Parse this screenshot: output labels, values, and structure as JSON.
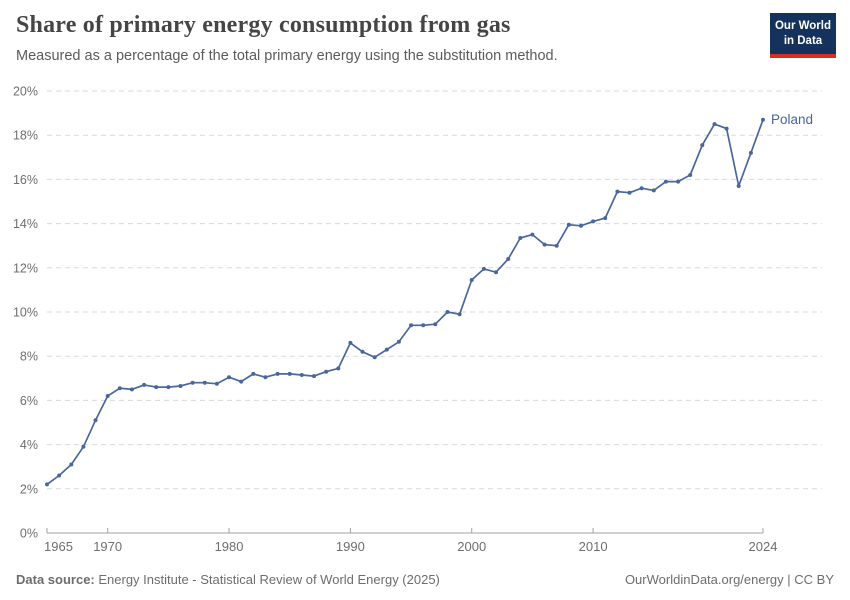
{
  "header": {
    "title": "Share of primary energy consumption from gas",
    "subtitle": "Measured as a percentage of the total primary energy using the substitution method."
  },
  "logo": {
    "line1": "Our World",
    "line2": "in Data",
    "bg_color": "#14325c",
    "accent_color": "#d7301f"
  },
  "chart_data": {
    "type": "line",
    "title": "Share of primary energy consumption from gas",
    "xlabel": "",
    "ylabel": "",
    "ylim": [
      0,
      20
    ],
    "xlim": [
      1965,
      2024
    ],
    "grid": "horizontal-dashed",
    "legend_position": "end-of-line-label",
    "yticks": [
      0,
      2,
      4,
      6,
      8,
      10,
      12,
      14,
      16,
      18,
      20
    ],
    "ytick_suffix": "%",
    "xticks": [
      1965,
      1970,
      1980,
      1990,
      2000,
      2010,
      2024
    ],
    "series": [
      {
        "name": "Poland",
        "color": "#4a679b",
        "x": [
          1965,
          1966,
          1967,
          1968,
          1969,
          1970,
          1971,
          1972,
          1973,
          1974,
          1975,
          1976,
          1977,
          1978,
          1979,
          1980,
          1981,
          1982,
          1983,
          1984,
          1985,
          1986,
          1987,
          1988,
          1989,
          1990,
          1991,
          1992,
          1993,
          1994,
          1995,
          1996,
          1997,
          1998,
          1999,
          2000,
          2001,
          2002,
          2003,
          2004,
          2005,
          2006,
          2007,
          2008,
          2009,
          2010,
          2011,
          2012,
          2013,
          2014,
          2015,
          2016,
          2017,
          2018,
          2019,
          2020,
          2021,
          2022,
          2023,
          2024
        ],
        "values": [
          2.2,
          2.6,
          3.1,
          3.9,
          5.1,
          6.2,
          6.55,
          6.5,
          6.7,
          6.6,
          6.6,
          6.65,
          6.8,
          6.8,
          6.75,
          7.05,
          6.85,
          7.2,
          7.05,
          7.2,
          7.2,
          7.15,
          7.1,
          7.3,
          7.45,
          8.6,
          8.2,
          7.95,
          8.3,
          8.65,
          9.4,
          9.4,
          9.45,
          10.0,
          9.9,
          11.45,
          11.95,
          11.8,
          12.4,
          13.35,
          13.5,
          13.05,
          13.0,
          13.95,
          13.9,
          14.1,
          14.25,
          15.45,
          15.4,
          15.6,
          15.5,
          15.9,
          15.9,
          16.2,
          17.55,
          18.5,
          18.3,
          15.7,
          17.2,
          18.7
        ]
      }
    ],
    "colors": {
      "gridline": "#d9d9d9",
      "axis_line": "#a3a3a3",
      "tick_label": "#6e6e6e"
    }
  },
  "footer": {
    "source_label": "Data source:",
    "source_text": " Energy Institute - Statistical Review of World Energy (2025)",
    "credit_text": "OurWorldinData.org/energy | CC BY"
  }
}
